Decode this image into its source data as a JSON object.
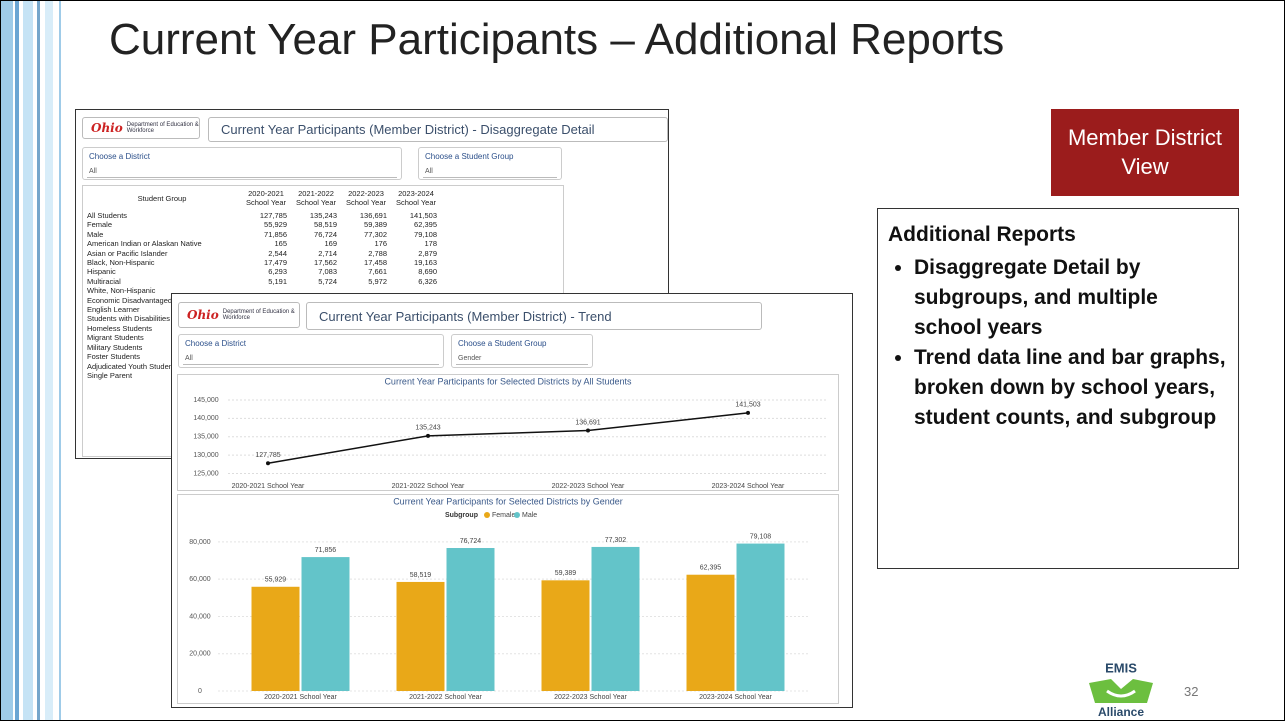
{
  "slide": {
    "title": "Current Year Participants – Additional Reports",
    "badge": "Member District View",
    "notes": {
      "heading": "Additional Reports",
      "bullets": [
        "Disaggregate Detail by subgroups, and multiple school years",
        "Trend data line and bar graphs, broken down by school years, student counts, and subgroup"
      ]
    },
    "logo": {
      "title": "EMIS",
      "subtitle": "Alliance"
    },
    "page_number": "32"
  },
  "detail_report": {
    "logo_text": "Department of Education & Workforce",
    "title": "Current Year Participants (Member District) - Disaggregate Detail",
    "filters": [
      {
        "label": "Choose a District",
        "value": "All"
      },
      {
        "label": "Choose a Student Group",
        "value": "All"
      }
    ],
    "table": {
      "columns": [
        "Student Group",
        "2020-2021 School Year",
        "2021-2022 School Year",
        "2022-2023 School Year",
        "2023-2024 School Year"
      ],
      "rows": [
        [
          "All Students",
          "127,785",
          "135,243",
          "136,691",
          "141,503"
        ],
        [
          "Female",
          "55,929",
          "58,519",
          "59,389",
          "62,395"
        ],
        [
          "Male",
          "71,856",
          "76,724",
          "77,302",
          "79,108"
        ],
        [
          "American Indian or Alaskan Native",
          "165",
          "169",
          "176",
          "178"
        ],
        [
          "Asian or Pacific Islander",
          "2,544",
          "2,714",
          "2,788",
          "2,879"
        ],
        [
          "Black, Non-Hispanic",
          "17,479",
          "17,562",
          "17,458",
          "19,163"
        ],
        [
          "Hispanic",
          "6,293",
          "7,083",
          "7,661",
          "8,690"
        ],
        [
          "Multiracial",
          "5,191",
          "5,724",
          "5,972",
          "6,326"
        ]
      ],
      "covered_rows": [
        "White, Non-Hispanic",
        "Economic Disadvantaged",
        "English Learner",
        "Students with Disabilities",
        "Homeless Students",
        "Migrant Students",
        "Military Students",
        "Foster Students",
        "Adjudicated Youth Students",
        "Single Parent"
      ]
    }
  },
  "trend_report": {
    "logo_text": "Department of Education & Workforce",
    "title": "Current Year Participants (Member District) - Trend",
    "filters": [
      {
        "label": "Choose a District",
        "value": "All"
      },
      {
        "label": "Choose a Student Group",
        "value": "Gender"
      }
    ],
    "charts": [
      {
        "type": "line",
        "title": "Current Year Participants for Selected Districts by All Students",
        "categories": [
          "2020-2021 School Year",
          "2021-2022 School Year",
          "2022-2023 School Year",
          "2023-2024 School Year"
        ],
        "values": [
          127785,
          135243,
          136691,
          141503
        ],
        "value_labels": [
          "127,785",
          "135,243",
          "136,691",
          "141,503"
        ],
        "color": "#111111",
        "ylim": [
          123500,
          148000
        ],
        "yticks": [
          {
            "value": 125000,
            "label": "125,000"
          },
          {
            "value": 130000,
            "label": "130,000"
          },
          {
            "value": 135000,
            "label": "135,000"
          },
          {
            "value": 140000,
            "label": "140,000"
          },
          {
            "value": 145000,
            "label": "145,000"
          }
        ],
        "grid": true
      },
      {
        "type": "bar",
        "title": "Current Year Participants for Selected Districts by Gender",
        "legend_title": "Subgroup",
        "categories": [
          "2020-2021 School Year",
          "2021-2022 School Year",
          "2022-2023 School Year",
          "2023-2024 School Year"
        ],
        "series": [
          {
            "name": "Female",
            "color": "#e9a818",
            "values": [
              55929,
              58519,
              59389,
              62395
            ],
            "value_labels": [
              "55,929",
              "58,519",
              "59,389",
              "62,395"
            ]
          },
          {
            "name": "Male",
            "color": "#63c4c9",
            "values": [
              71856,
              76724,
              77302,
              79108
            ],
            "value_labels": [
              "71,856",
              "76,724",
              "77,302",
              "79,108"
            ]
          }
        ],
        "ylim": [
          0,
          88000
        ],
        "yticks": [
          0,
          {
            "value": 20000,
            "label": "20,000"
          },
          {
            "value": 40000,
            "label": "40,000"
          },
          {
            "value": 60000,
            "label": "60,000"
          },
          {
            "value": 80000,
            "label": "80,000"
          }
        ],
        "grid": true
      }
    ]
  }
}
